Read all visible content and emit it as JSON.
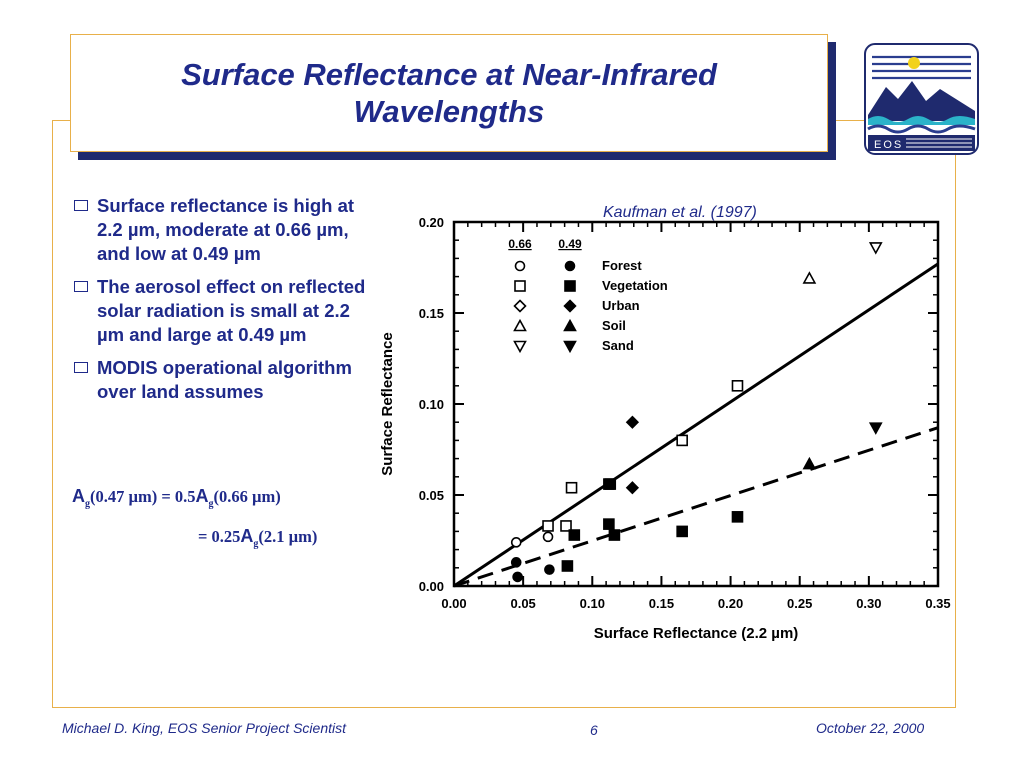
{
  "slide": {
    "title": "Surface Reflectance at Near-Infrared Wavelengths",
    "logo_text": "EOS",
    "bullets": [
      "Surface reflectance is high at 2.2 µm, moderate at 0.66 µm, and low at 0.49 µm",
      "The aerosol effect on reflected solar radiation is small at 2.2 µm and large at 0.49 µm",
      "MODIS operational algorithm over land assumes"
    ],
    "equation1": {
      "lhs_sym": "A",
      "lhs_sub": "g",
      "lhs_arg": "(0.47 µm)",
      "op": "= 0.5",
      "rhs_sym": "A",
      "rhs_sub": "g",
      "rhs_arg": "(0.66 µm)"
    },
    "equation2": {
      "op": "= 0.25",
      "rhs_sym": "A",
      "rhs_sub": "g",
      "rhs_arg": "(2.1 µm)"
    },
    "citation": "Kaufman et al. (1997)",
    "footer": {
      "left": "Michael D. King, EOS Senior Project Scientist",
      "page": "6",
      "right": "October 22, 2000"
    },
    "colors": {
      "title": "#1f2a8a",
      "border": "#e8b04a",
      "shadow": "#1f2a6e"
    }
  },
  "chart_data": {
    "type": "scatter",
    "xlabel": "Surface Reflectance (2.2 µm)",
    "ylabel": "Surface Reflectance",
    "xlim": [
      0,
      0.35
    ],
    "ylim": [
      0,
      0.2
    ],
    "xticks": [
      "0.00",
      "0.05",
      "0.10",
      "0.15",
      "0.20",
      "0.25",
      "0.30",
      "0.35"
    ],
    "yticks": [
      "0.00",
      "0.05",
      "0.10",
      "0.15",
      "0.20"
    ],
    "legend_headers": [
      "0.66",
      "0.49"
    ],
    "legend": [
      {
        "label": "Forest",
        "shape": "circle"
      },
      {
        "label": "Vegetation",
        "shape": "square"
      },
      {
        "label": "Urban",
        "shape": "diamond"
      },
      {
        "label": "Soil",
        "shape": "triangle-up"
      },
      {
        "label": "Sand",
        "shape": "triangle-down"
      }
    ],
    "series": [
      {
        "name": "0.66",
        "filled": false,
        "points": [
          {
            "x": 0.045,
            "y": 0.024,
            "shape": "circle"
          },
          {
            "x": 0.068,
            "y": 0.027,
            "shape": "circle"
          },
          {
            "x": 0.068,
            "y": 0.033,
            "shape": "square"
          },
          {
            "x": 0.085,
            "y": 0.054,
            "shape": "square"
          },
          {
            "x": 0.081,
            "y": 0.033,
            "shape": "square"
          },
          {
            "x": 0.112,
            "y": 0.056,
            "shape": "square"
          },
          {
            "x": 0.165,
            "y": 0.08,
            "shape": "square"
          },
          {
            "x": 0.205,
            "y": 0.11,
            "shape": "square"
          },
          {
            "x": 0.257,
            "y": 0.169,
            "shape": "triangle-up"
          },
          {
            "x": 0.305,
            "y": 0.186,
            "shape": "triangle-down"
          }
        ]
      },
      {
        "name": "0.49",
        "filled": true,
        "points": [
          {
            "x": 0.045,
            "y": 0.013,
            "shape": "circle"
          },
          {
            "x": 0.046,
            "y": 0.005,
            "shape": "circle"
          },
          {
            "x": 0.069,
            "y": 0.009,
            "shape": "circle"
          },
          {
            "x": 0.082,
            "y": 0.011,
            "shape": "square"
          },
          {
            "x": 0.087,
            "y": 0.028,
            "shape": "square"
          },
          {
            "x": 0.112,
            "y": 0.034,
            "shape": "square"
          },
          {
            "x": 0.113,
            "y": 0.056,
            "shape": "square"
          },
          {
            "x": 0.116,
            "y": 0.028,
            "shape": "square"
          },
          {
            "x": 0.165,
            "y": 0.03,
            "shape": "square"
          },
          {
            "x": 0.205,
            "y": 0.038,
            "shape": "square"
          },
          {
            "x": 0.129,
            "y": 0.09,
            "shape": "diamond"
          },
          {
            "x": 0.129,
            "y": 0.054,
            "shape": "diamond"
          },
          {
            "x": 0.257,
            "y": 0.067,
            "shape": "triangle-up"
          },
          {
            "x": 0.305,
            "y": 0.087,
            "shape": "triangle-down"
          }
        ]
      }
    ],
    "fit_lines": [
      {
        "name": "0.66 fit",
        "style": "solid",
        "x": [
          0,
          0.35
        ],
        "y": [
          0,
          0.177
        ]
      },
      {
        "name": "0.49 fit",
        "style": "dashed",
        "x": [
          0,
          0.35
        ],
        "y": [
          0,
          0.087
        ]
      }
    ]
  }
}
